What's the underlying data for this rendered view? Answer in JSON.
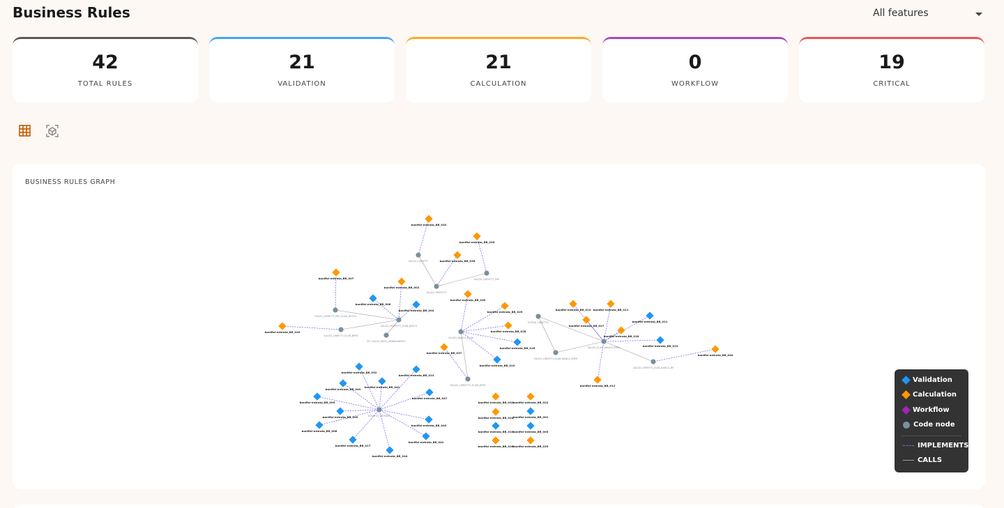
{
  "header": {
    "title": "Business Rules",
    "filter": "All features"
  },
  "stats": [
    {
      "value": "42",
      "label": "TOTAL RULES",
      "color": "#5a5a5a"
    },
    {
      "value": "21",
      "label": "VALIDATION",
      "color": "#42a5f5"
    },
    {
      "value": "21",
      "label": "CALCULATION",
      "color": "#ffa726"
    },
    {
      "value": "0",
      "label": "WORKFLOW",
      "color": "#ab47bc"
    },
    {
      "value": "19",
      "label": "CRITICAL",
      "color": "#ef5350"
    }
  ],
  "graph": {
    "title": "BUSINESS RULES GRAPH",
    "nodes": [
      {
        "label": "SALDO_LIBRETTI",
        "color": "#78909c"
      },
      {
        "label": "bonifici-entrata_BR_034",
        "color": "#ff9800"
      },
      {
        "label": "bonifici-entrata_BR_035",
        "color": "#ff9800"
      },
      {
        "label": "bonifici-entrata_BR_036",
        "color": "#ff9800"
      },
      {
        "label": "SALDO_LIBRETTI_PRE",
        "color": "#78909c"
      },
      {
        "label": "SALDO_PREFETTI",
        "color": "#78909c"
      },
      {
        "label": "bonifici-entrata_BR_007",
        "color": "#ff9800"
      },
      {
        "label": "bonifici-entrata_BR_002",
        "color": "#ff9800"
      },
      {
        "label": "bonifici-entrata_BR_006",
        "color": "#2196f3"
      },
      {
        "label": "bonifici-entrata_BR_004",
        "color": "#2196f3"
      },
      {
        "label": "bonifici-entrata_BR_020",
        "color": "#ff9800"
      },
      {
        "label": "SALDO_LIBRETTI_PRE_ELAB_BATCH",
        "color": "#78909c"
      },
      {
        "label": "SALDO_PREFETTI_ELAB_BATCH",
        "color": "#78909c"
      },
      {
        "label": "SALDO_LIBRETTI_ELAB_BPER",
        "color": "#78909c"
      },
      {
        "label": "SET_SALDI_BANC_ABBINAMENTO",
        "color": "#78909c"
      },
      {
        "label": "SALDO_BANCA_ELAB",
        "color": "#78909c"
      },
      {
        "label": "bonifici-entrata_BR_030",
        "color": "#ff9800"
      },
      {
        "label": "bonifici-entrata_BR_029",
        "color": "#ff9800"
      },
      {
        "label": "bonifici-entrata_BR_028",
        "color": "#ff9800"
      },
      {
        "label": "bonifici-entrata_BR_016",
        "color": "#2196f3"
      },
      {
        "label": "bonifici-entrata_BR_019",
        "color": "#2196f3"
      },
      {
        "label": "bonifici-entrata_BR_037",
        "color": "#ff9800"
      },
      {
        "label": "SALDO_LIBRETTO_ELAB_BPER",
        "color": "#78909c"
      },
      {
        "label": "ESTINZ_LIBRETTO",
        "color": "#78909c"
      },
      {
        "label": "SALDO_ELAB_BANCA_BPER",
        "color": "#78909c"
      },
      {
        "label": "SALDO_LIBRETTI_ELAB_BANCA_BPER",
        "color": "#78909c"
      },
      {
        "label": "SALDO_LIBRETTI_ELAB_BANCA_BP",
        "color": "#78909c"
      },
      {
        "label": "bonifici-entrata_BR_013",
        "color": "#ff9800"
      },
      {
        "label": "bonifici-entrata_BR_011",
        "color": "#ff9800"
      },
      {
        "label": "bonifici-entrata_BR_027",
        "color": "#ff9800"
      },
      {
        "label": "bonifici-entrata_BR_021",
        "color": "#2196f3"
      },
      {
        "label": "bonifici-entrata_BR_018",
        "color": "#ff9800"
      },
      {
        "label": "bonifici-entrata_BR_023",
        "color": "#2196f3"
      },
      {
        "label": "bonifici-entrata_BR_040",
        "color": "#ff9800"
      },
      {
        "label": "bonifici-entrata_BR_012",
        "color": "#ff9800"
      },
      {
        "label": "BONIFICI_ENTRATA",
        "color": "#78909c"
      },
      {
        "label": "bonifici-entrata_BR_052",
        "color": "#2196f3"
      },
      {
        "label": "bonifici-entrata_BR_014",
        "color": "#2196f3"
      },
      {
        "label": "bonifici-entrata_BR_049",
        "color": "#2196f3"
      },
      {
        "label": "bonifici-entrata_BR_041",
        "color": "#2196f3"
      },
      {
        "label": "bonifici-entrata_BR_047",
        "color": "#2196f3"
      },
      {
        "label": "bonifici-entrata_BR_005",
        "color": "#2196f3"
      },
      {
        "label": "bonifici-entrata_BR_009",
        "color": "#2196f3"
      },
      {
        "label": "bonifici-entrata_BR_008",
        "color": "#2196f3"
      },
      {
        "label": "bonifici-entrata_BR_043",
        "color": "#2196f3"
      },
      {
        "label": "bonifici-entrata_BR_017",
        "color": "#2196f3"
      },
      {
        "label": "bonifici-entrata_BR_042",
        "color": "#2196f3"
      },
      {
        "label": "bonifici-entrata_BR_044",
        "color": "#2196f3"
      },
      {
        "label": "bonifici-entrata_BR_032",
        "color": "#ff9800"
      },
      {
        "label": "bonifici-entrata_BR_022",
        "color": "#ff9800"
      },
      {
        "label": "bonifici-entrata_BR_024",
        "color": "#ff9800"
      },
      {
        "label": "bonifici-entrata_BR_001",
        "color": "#2196f3"
      },
      {
        "label": "bonifici-entrata_BR_010",
        "color": "#2196f3"
      },
      {
        "label": "bonifici-entrata_BR_003",
        "color": "#2196f3"
      },
      {
        "label": "bonifici-entrata_BR_026",
        "color": "#ff9800"
      },
      {
        "label": "bonifici-entrata_BR_025",
        "color": "#ff9800"
      }
    ],
    "legend": {
      "items": [
        {
          "label": "Validation",
          "color": "#2196f3"
        },
        {
          "label": "Calculation",
          "color": "#ff9800"
        },
        {
          "label": "Workflow",
          "color": "#9c27b0"
        },
        {
          "label": "Code node",
          "color": "#78909c"
        }
      ],
      "lines": [
        {
          "label": "IMPLEMENTS",
          "color": "#7c6cf0"
        },
        {
          "label": "CALLS",
          "color": "#9e9e9e"
        }
      ]
    }
  }
}
